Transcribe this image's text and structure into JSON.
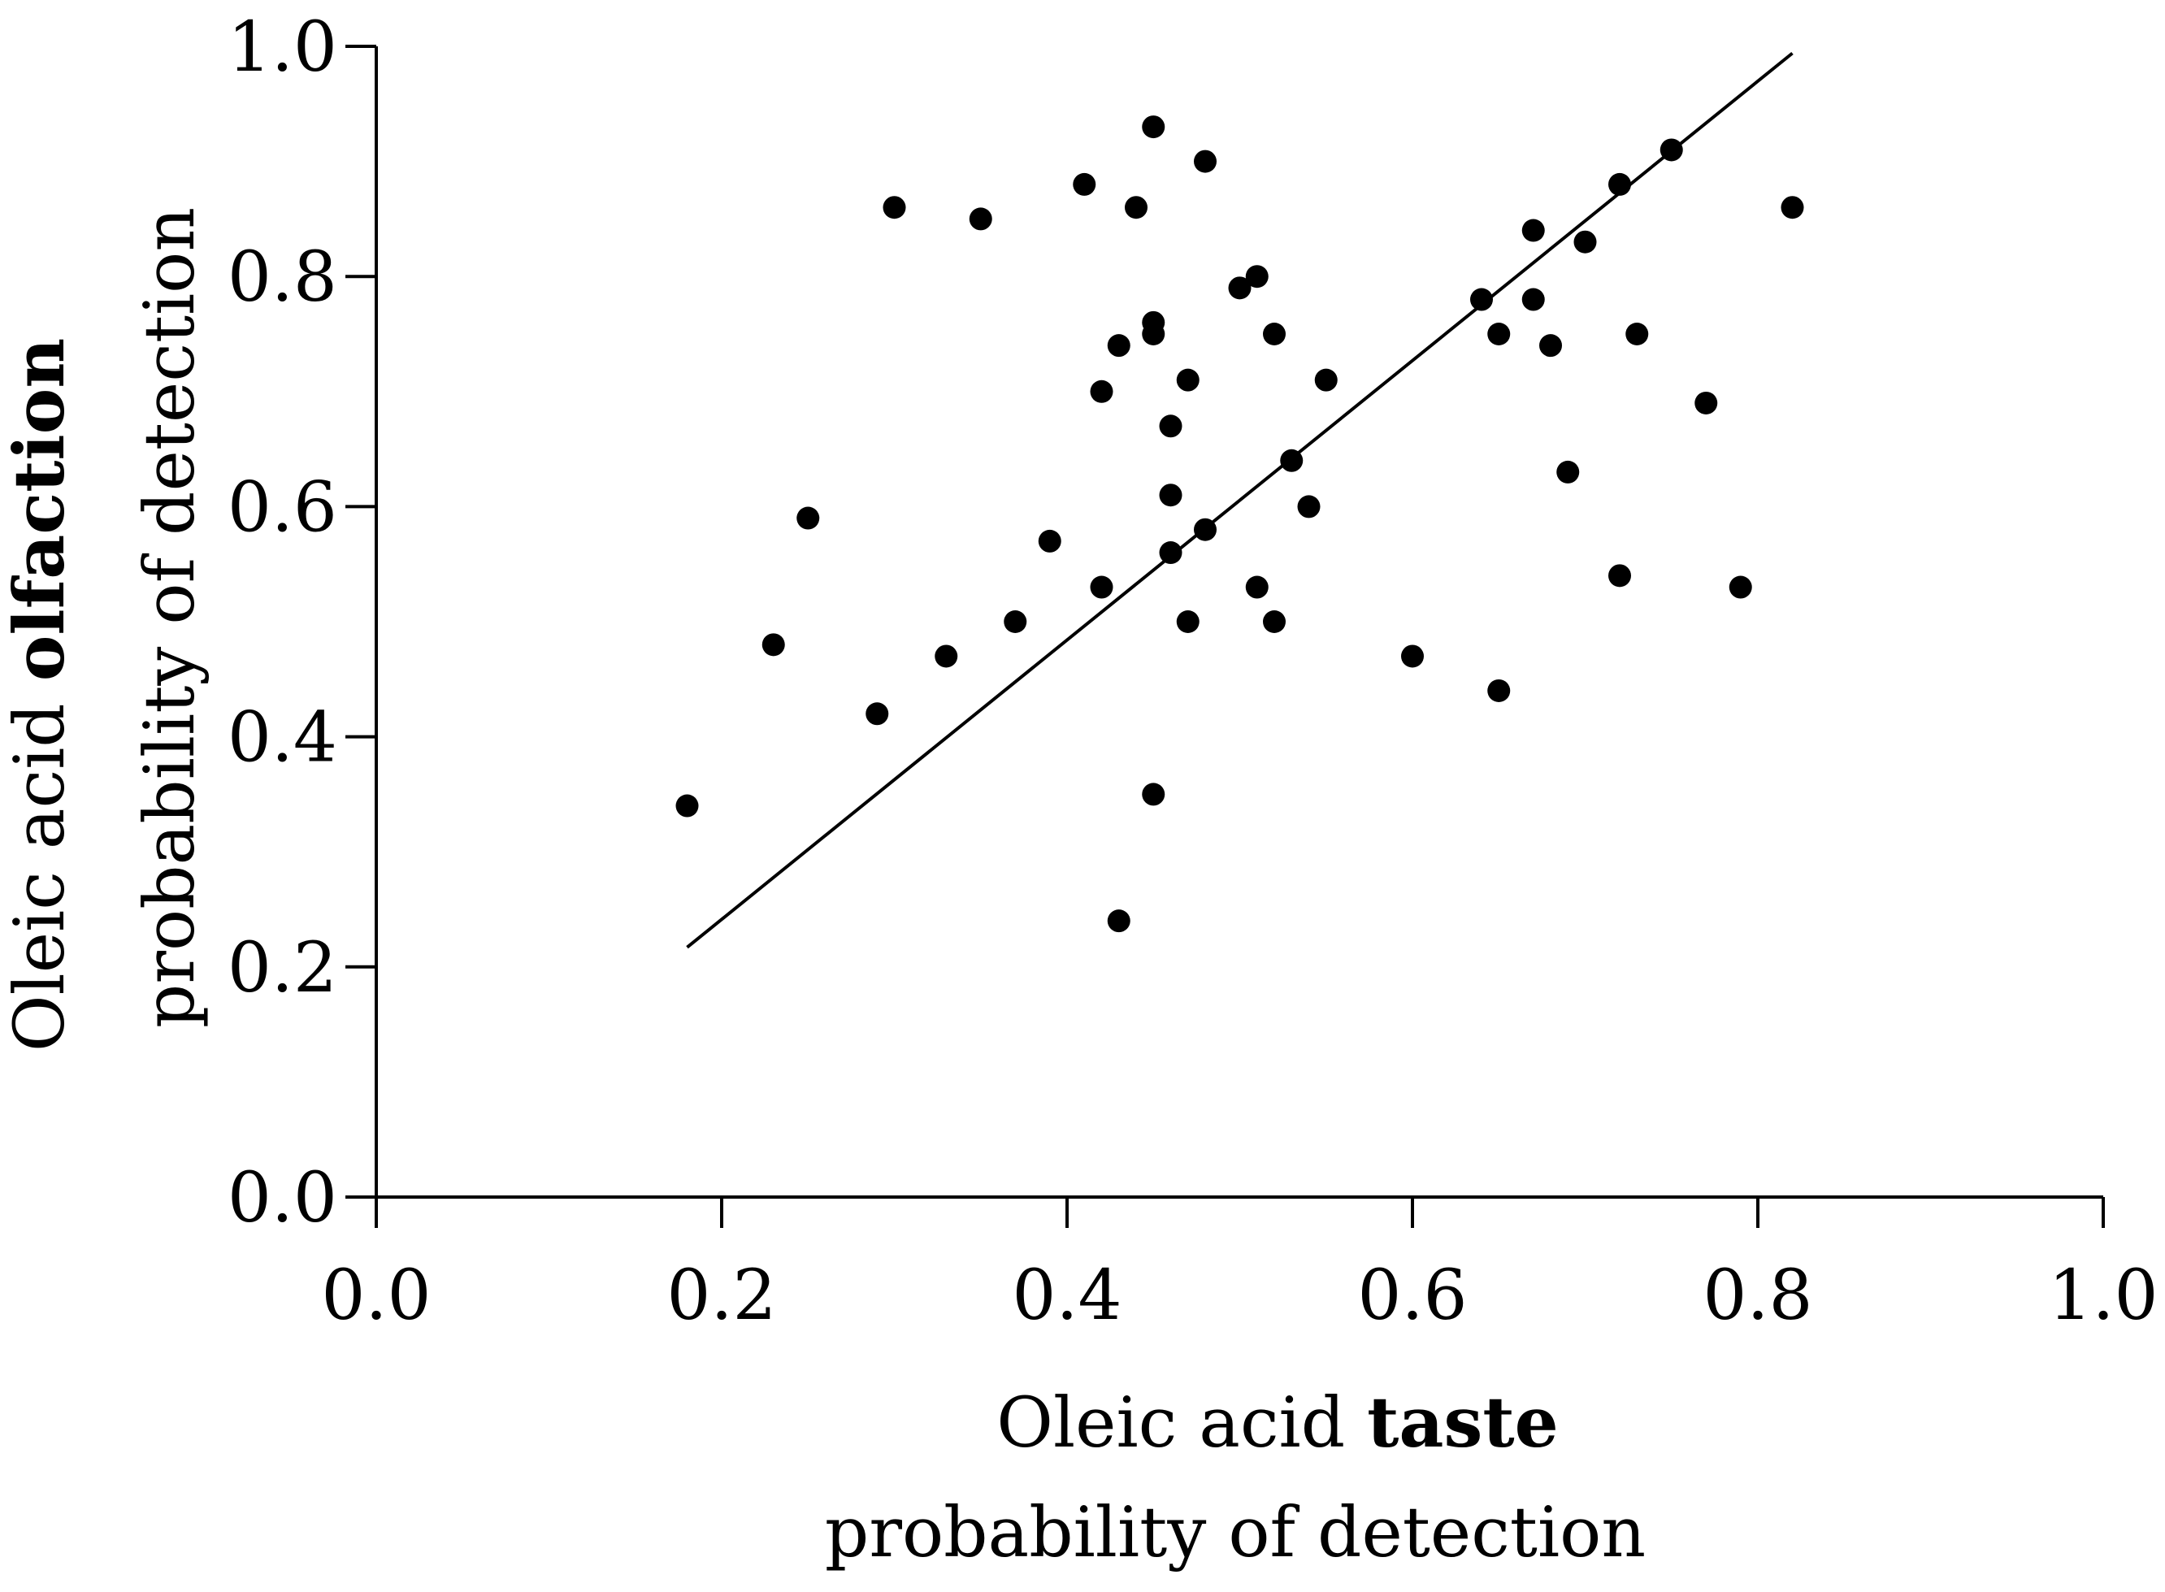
{
  "chart_data": {
    "type": "scatter",
    "title": "",
    "xlabel": {
      "line1_prefix": "Oleic acid ",
      "line1_bold": "taste",
      "line2": "probability of detection"
    },
    "ylabel": {
      "line1_prefix": "Oleic acid ",
      "line1_bold": "olfaction",
      "line2": "probability of detection"
    },
    "xlim": [
      0.0,
      1.0
    ],
    "ylim": [
      0.0,
      1.0
    ],
    "xticks": [
      "0.0",
      "0.2",
      "0.4",
      "0.6",
      "0.8",
      "1.0"
    ],
    "yticks": [
      "0.0",
      "0.2",
      "0.4",
      "0.6",
      "0.8",
      "1.0"
    ],
    "grid": false,
    "legend": "none",
    "points": [
      [
        0.18,
        0.34
      ],
      [
        0.23,
        0.48
      ],
      [
        0.25,
        0.59
      ],
      [
        0.29,
        0.42
      ],
      [
        0.3,
        0.86
      ],
      [
        0.33,
        0.47
      ],
      [
        0.35,
        0.85
      ],
      [
        0.37,
        0.5
      ],
      [
        0.39,
        0.57
      ],
      [
        0.41,
        0.88
      ],
      [
        0.42,
        0.7
      ],
      [
        0.42,
        0.53
      ],
      [
        0.43,
        0.74
      ],
      [
        0.43,
        0.24
      ],
      [
        0.44,
        0.86
      ],
      [
        0.45,
        0.93
      ],
      [
        0.45,
        0.76
      ],
      [
        0.45,
        0.75
      ],
      [
        0.45,
        0.35
      ],
      [
        0.46,
        0.67
      ],
      [
        0.46,
        0.61
      ],
      [
        0.46,
        0.56
      ],
      [
        0.47,
        0.71
      ],
      [
        0.47,
        0.5
      ],
      [
        0.48,
        0.9
      ],
      [
        0.48,
        0.58
      ],
      [
        0.5,
        0.79
      ],
      [
        0.51,
        0.8
      ],
      [
        0.51,
        0.53
      ],
      [
        0.52,
        0.75
      ],
      [
        0.52,
        0.5
      ],
      [
        0.53,
        0.64
      ],
      [
        0.54,
        0.6
      ],
      [
        0.55,
        0.71
      ],
      [
        0.6,
        0.47
      ],
      [
        0.64,
        0.78
      ],
      [
        0.65,
        0.75
      ],
      [
        0.65,
        0.44
      ],
      [
        0.67,
        0.84
      ],
      [
        0.67,
        0.78
      ],
      [
        0.68,
        0.74
      ],
      [
        0.69,
        0.63
      ],
      [
        0.7,
        0.83
      ],
      [
        0.72,
        0.88
      ],
      [
        0.72,
        0.54
      ],
      [
        0.73,
        0.75
      ],
      [
        0.75,
        0.91
      ],
      [
        0.77,
        0.69
      ],
      [
        0.79,
        0.53
      ],
      [
        0.82,
        0.86
      ]
    ],
    "fit_line": {
      "x": [
        0.18,
        0.82
      ],
      "y": [
        0.217,
        0.994
      ]
    }
  }
}
